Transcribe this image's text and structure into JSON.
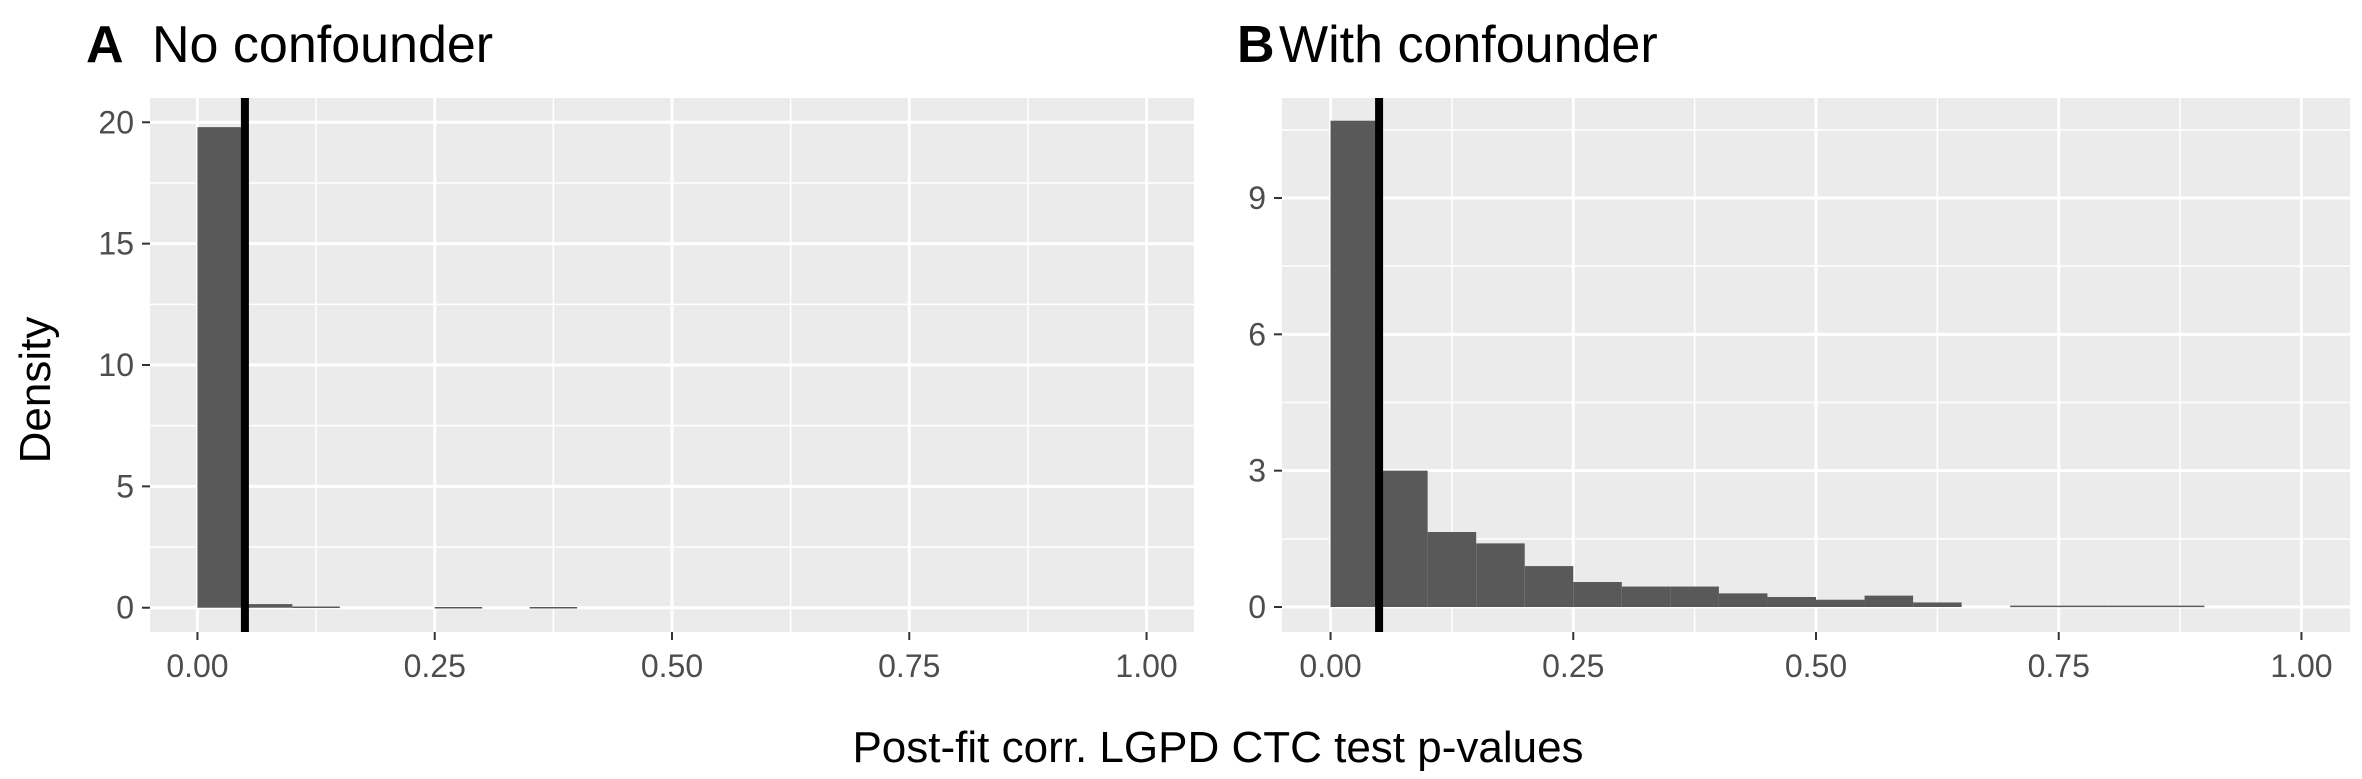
{
  "chart_data": [
    {
      "type": "histogram",
      "tag": "A",
      "title": "No confounder",
      "xlim": [
        -0.05,
        1.05
      ],
      "ylim": [
        -1.0,
        21.0
      ],
      "xticks": [
        0,
        0.25,
        0.5,
        0.75,
        1.0
      ],
      "xtick_labels": [
        "0.00",
        "0.25",
        "0.50",
        "0.75",
        "1.00"
      ],
      "yticks": [
        0,
        5,
        10,
        15,
        20
      ],
      "ytick_labels": [
        "0",
        "5",
        "10",
        "15",
        "20"
      ],
      "bin_width": 0.05,
      "bin_starts": [
        0.0,
        0.05,
        0.1,
        0.15,
        0.2,
        0.25,
        0.3,
        0.35,
        0.4,
        0.45,
        0.5,
        0.55,
        0.6,
        0.65,
        0.7,
        0.75,
        0.8,
        0.85,
        0.9,
        0.95
      ],
      "values": [
        19.8,
        0.15,
        0.05,
        0.0,
        0.0,
        0.03,
        0.0,
        0.03,
        0.0,
        0.0,
        0.0,
        0.0,
        0.0,
        0.0,
        0.0,
        0.0,
        0.0,
        0.0,
        0.0,
        0.0
      ],
      "vline": 0.05,
      "grid": true
    },
    {
      "type": "histogram",
      "tag": "B",
      "title": "With confounder",
      "xlim": [
        -0.05,
        1.05
      ],
      "ylim": [
        -0.55,
        11.2
      ],
      "xticks": [
        0,
        0.25,
        0.5,
        0.75,
        1.0
      ],
      "xtick_labels": [
        "0.00",
        "0.25",
        "0.50",
        "0.75",
        "1.00"
      ],
      "yticks": [
        0,
        3,
        6,
        9
      ],
      "ytick_labels": [
        "0",
        "3",
        "6",
        "9"
      ],
      "bin_width": 0.05,
      "bin_starts": [
        0.0,
        0.05,
        0.1,
        0.15,
        0.2,
        0.25,
        0.3,
        0.35,
        0.4,
        0.45,
        0.5,
        0.55,
        0.6,
        0.65,
        0.7,
        0.75,
        0.8,
        0.85,
        0.9,
        0.95
      ],
      "values": [
        10.7,
        3.0,
        1.65,
        1.4,
        0.9,
        0.55,
        0.45,
        0.45,
        0.3,
        0.22,
        0.16,
        0.25,
        0.1,
        0.0,
        0.03,
        0.03,
        0.03,
        0.03,
        0.0,
        0.0
      ],
      "vline": 0.05,
      "grid": true
    }
  ],
  "ylabel": "Density",
  "xlabel": "Post-fit corr. LGPD CTC test p-values",
  "colors": {
    "panel_bg": "#ebebeb",
    "grid_major": "#ffffff",
    "bar": "#595959",
    "vline": "#000000",
    "tick_text": "#4d4d4d"
  }
}
